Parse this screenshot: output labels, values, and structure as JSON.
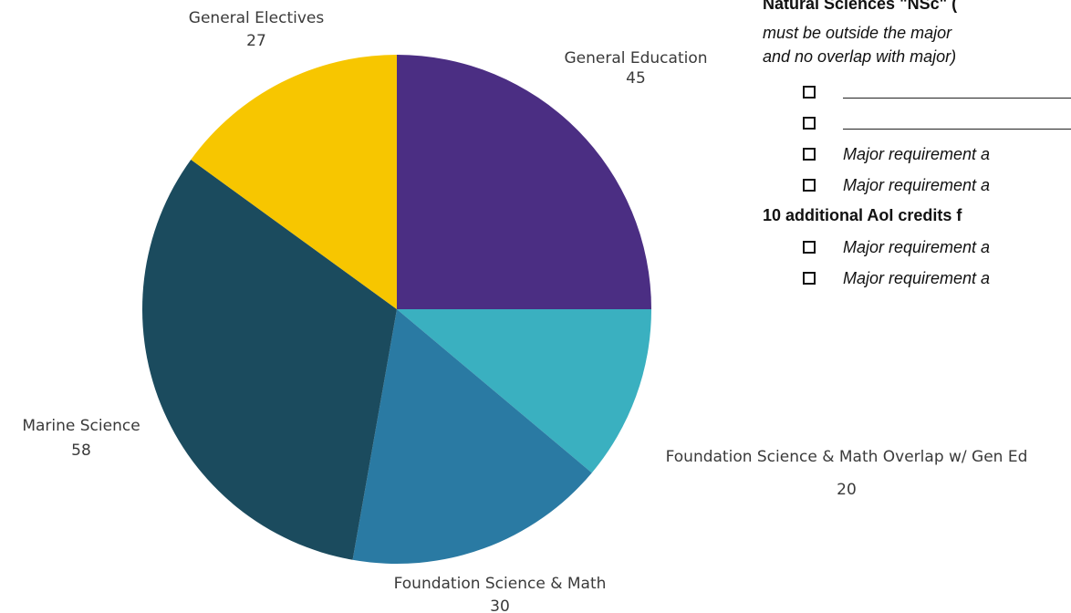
{
  "chart_data": {
    "type": "pie",
    "start_angle_deg": 0,
    "direction": "clockwise",
    "slices": [
      {
        "label": "General Education",
        "value": 45,
        "color": "#4b2e83"
      },
      {
        "label": "Foundation Science & Math Overlap w/ Gen Ed",
        "value": 20,
        "color": "#3ab0c0"
      },
      {
        "label": "Foundation Science & Math",
        "value": 30,
        "color": "#2a7aa3"
      },
      {
        "label": "Marine Science",
        "value": 58,
        "color": "#1b4b5e"
      },
      {
        "label": "General Electives",
        "value": 27,
        "color": "#f7c600"
      }
    ]
  },
  "document": {
    "heading1": "Natural Sciences \"NSc\" (",
    "italic_line1": "must be outside the major",
    "italic_line2": "and no overlap with major)",
    "checklist1": [
      {
        "type": "blank"
      },
      {
        "type": "blank"
      },
      {
        "type": "text",
        "text": "Major requirement a"
      },
      {
        "type": "text",
        "text": "Major requirement a"
      }
    ],
    "heading2": "10 additional AoI credits f",
    "checklist2": [
      {
        "type": "text",
        "text": "Major requirement a"
      },
      {
        "type": "text",
        "text": "Major requirement a"
      }
    ]
  }
}
